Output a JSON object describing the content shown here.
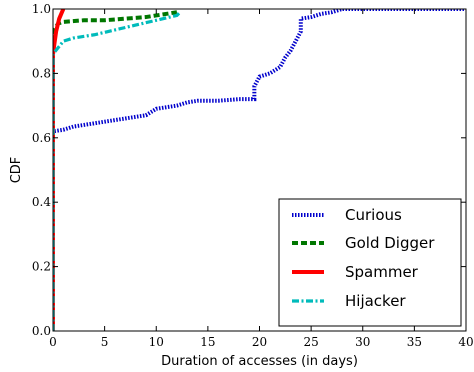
{
  "chart_data": {
    "type": "line",
    "xlabel": "Duration of accesses (in days)",
    "ylabel": "CDF",
    "xlim": [
      0,
      40
    ],
    "ylim": [
      0,
      1
    ],
    "x_ticks": [
      "0",
      "5",
      "10",
      "15",
      "20",
      "25",
      "30",
      "35",
      "40"
    ],
    "y_ticks": [
      "0.0",
      "0.2",
      "0.4",
      "0.6",
      "0.8",
      "1.0"
    ],
    "grid": false,
    "legend_position": "bottom-right",
    "series": [
      {
        "name": "Curious",
        "color": "#0000cc",
        "style": "dotted-thick",
        "points": [
          [
            0,
            0
          ],
          [
            0,
            0.62
          ],
          [
            1,
            0.625
          ],
          [
            2,
            0.635
          ],
          [
            3,
            0.64
          ],
          [
            4,
            0.645
          ],
          [
            5,
            0.65
          ],
          [
            6,
            0.655
          ],
          [
            7,
            0.66
          ],
          [
            8,
            0.665
          ],
          [
            9,
            0.67
          ],
          [
            9.5,
            0.68
          ],
          [
            10,
            0.69
          ],
          [
            11,
            0.695
          ],
          [
            12,
            0.7
          ],
          [
            13,
            0.71
          ],
          [
            14,
            0.715
          ],
          [
            16,
            0.715
          ],
          [
            18,
            0.72
          ],
          [
            19.5,
            0.72
          ],
          [
            19.5,
            0.76
          ],
          [
            20,
            0.79
          ],
          [
            21,
            0.8
          ],
          [
            22,
            0.82
          ],
          [
            22.5,
            0.85
          ],
          [
            23,
            0.87
          ],
          [
            23.5,
            0.9
          ],
          [
            24,
            0.93
          ],
          [
            24,
            0.97
          ],
          [
            25,
            0.975
          ],
          [
            26,
            0.985
          ],
          [
            27,
            0.99
          ],
          [
            28,
            1.0
          ],
          [
            40,
            1.0
          ]
        ]
      },
      {
        "name": "Gold Digger",
        "color": "#007700",
        "style": "dashed-thick",
        "points": [
          [
            0,
            0
          ],
          [
            0,
            0.93
          ],
          [
            0.5,
            0.955
          ],
          [
            1,
            0.96
          ],
          [
            3,
            0.965
          ],
          [
            5,
            0.965
          ],
          [
            7,
            0.97
          ],
          [
            9,
            0.975
          ],
          [
            10,
            0.98
          ],
          [
            11,
            0.985
          ],
          [
            12,
            0.99
          ]
        ]
      },
      {
        "name": "Spammer",
        "color": "#ff0000",
        "style": "solid-thick",
        "points": [
          [
            0,
            0
          ],
          [
            0,
            0.86
          ],
          [
            0.3,
            0.93
          ],
          [
            0.6,
            0.97
          ],
          [
            1,
            1.0
          ]
        ]
      },
      {
        "name": "Hijacker",
        "color": "#00bbbb",
        "style": "dashdot",
        "points": [
          [
            0,
            0
          ],
          [
            0,
            0.86
          ],
          [
            0.5,
            0.88
          ],
          [
            1,
            0.9
          ],
          [
            2,
            0.91
          ],
          [
            4,
            0.92
          ],
          [
            6,
            0.935
          ],
          [
            8,
            0.95
          ],
          [
            10,
            0.965
          ],
          [
            12,
            0.98
          ],
          [
            12.3,
            0.99
          ]
        ]
      }
    ]
  }
}
